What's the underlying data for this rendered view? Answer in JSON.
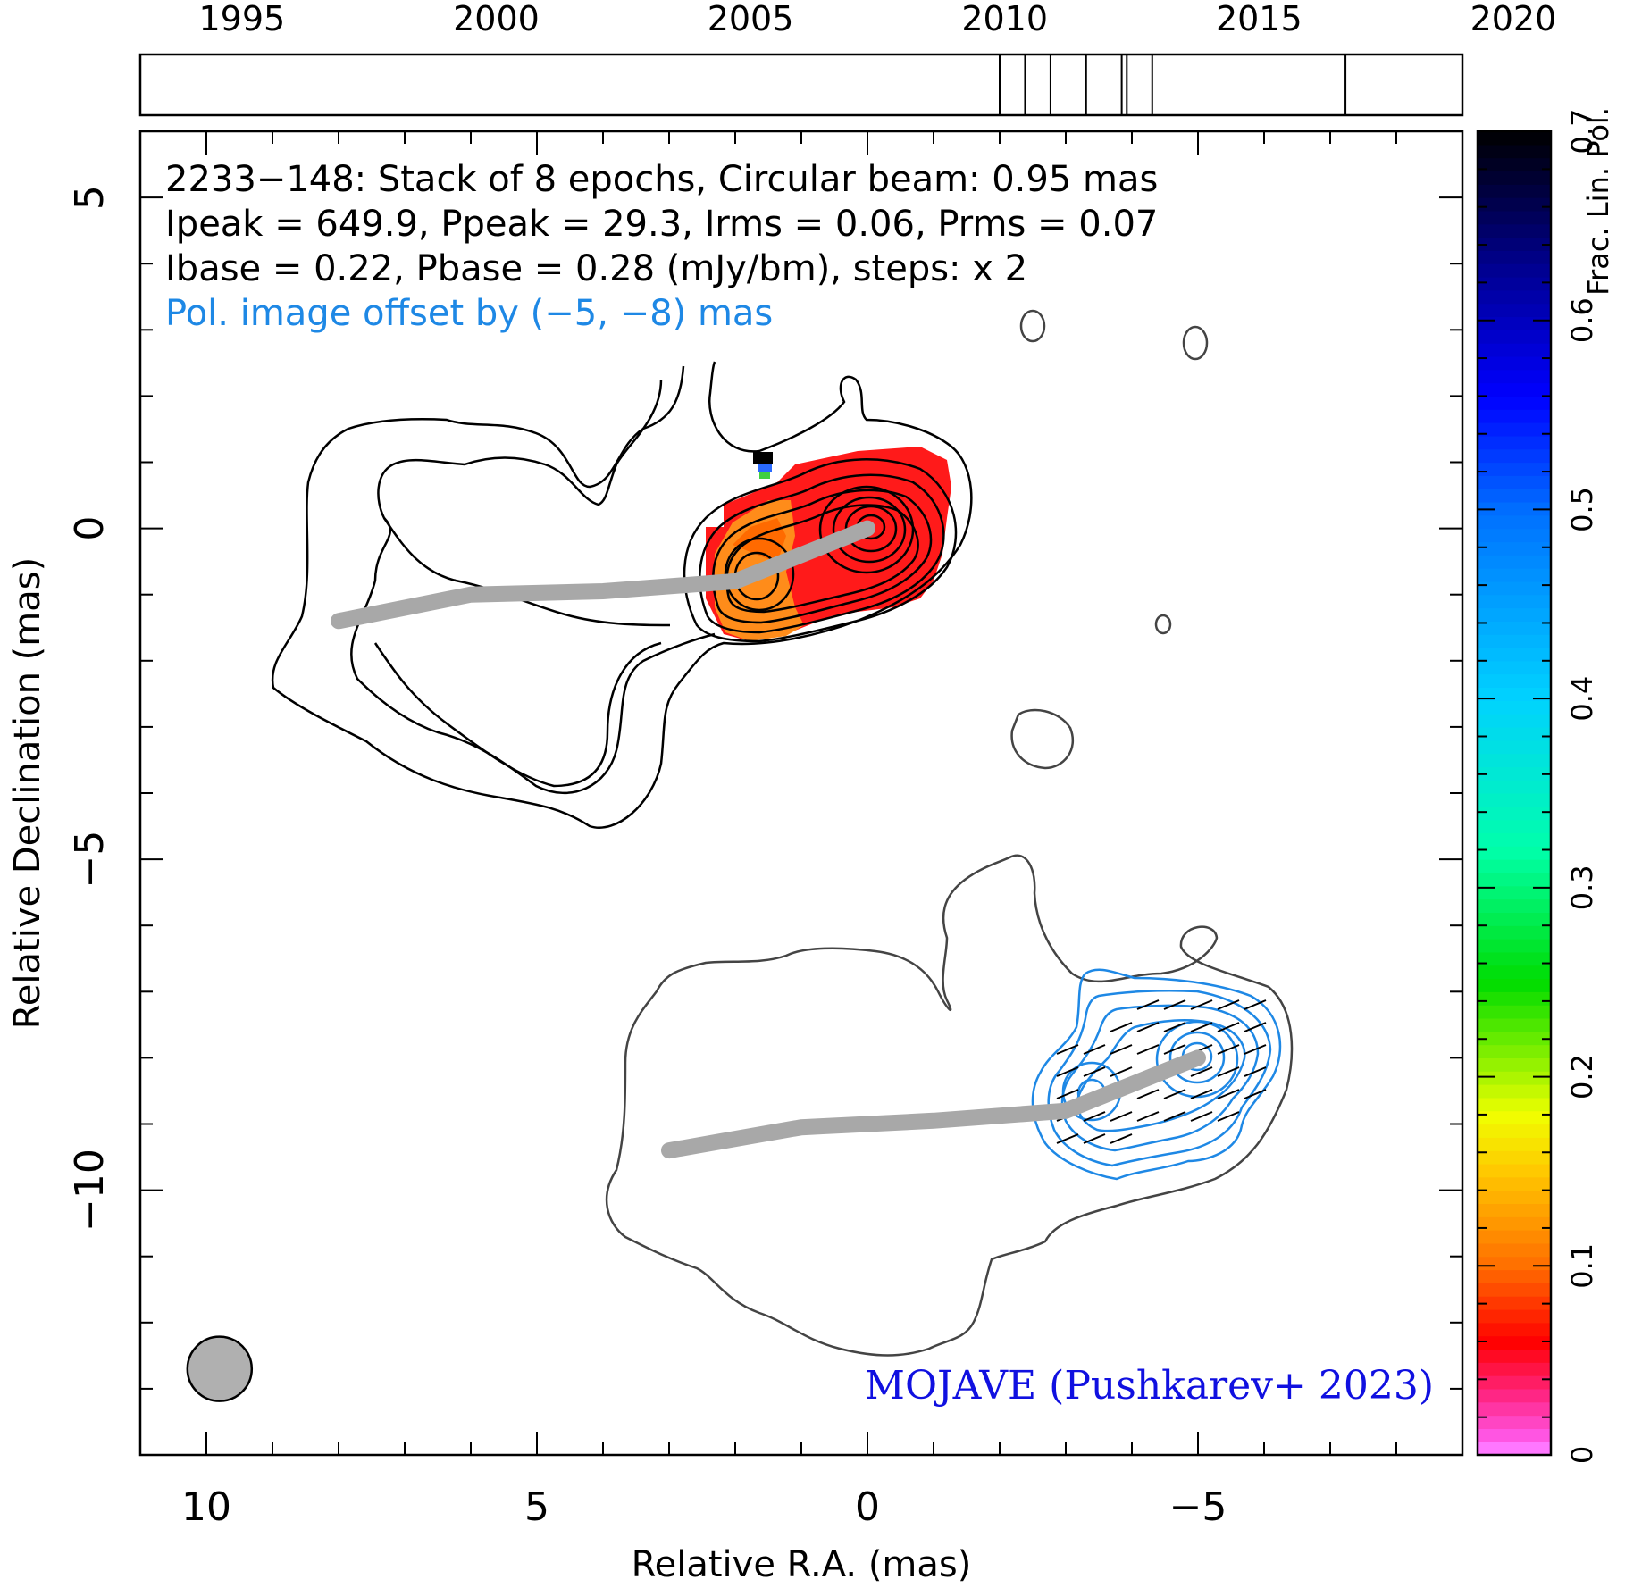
{
  "chart_data": {
    "type": "contour",
    "xlabel": "Relative R.A. (mas)",
    "ylabel": "Relative Declination (mas)",
    "xlim": [
      11,
      -9
    ],
    "ylim": [
      -14,
      6
    ],
    "x_ticks": [
      10,
      5,
      0,
      -5
    ],
    "y_ticks": [
      5,
      0,
      -5,
      -10
    ],
    "epoch_axis": {
      "range": [
        1993,
        2019
      ],
      "tick_labels": [
        "1995",
        "2000",
        "2005",
        "2010",
        "2015",
        "2020"
      ],
      "tick_values": [
        1995,
        2000,
        2005,
        2010,
        2015,
        2020
      ],
      "epochs": [
        2009.9,
        2010.4,
        2010.9,
        2011.6,
        2012.3,
        2012.4,
        2012.9,
        2016.7
      ]
    },
    "annotations": [
      "2233−148: Stack of 8 epochs, Circular beam: 0.95 mas",
      "Ipeak = 649.9, Ppeak = 29.3, Irms = 0.06, Prms = 0.07",
      "Ibase = 0.22, Pbase = 0.28 (mJy/bm), steps: x 2"
    ],
    "offset_note": "Pol. image offset by (−5, −8) mas",
    "credit": "MOJAVE (Pushkarev+ 2023)",
    "colorbar": {
      "label": "Frac. Lin. Pol.",
      "range": [
        0,
        0.7
      ],
      "tick_labels": [
        "0",
        "0.1",
        "0.2",
        "0.3",
        "0.4",
        "0.5",
        "0.6",
        "0.7"
      ],
      "tick_values": [
        0,
        0.1,
        0.2,
        0.3,
        0.4,
        0.5,
        0.6,
        0.7
      ]
    },
    "beam": {
      "x": 9.8,
      "y": -12.7,
      "diameter_mas": 0.95
    },
    "ridge_line": [
      [
        8,
        -1.4
      ],
      [
        6,
        -1.0
      ],
      [
        4,
        -0.95
      ],
      [
        2,
        -0.8
      ],
      [
        0,
        0
      ]
    ],
    "pol_ridge_line": [
      [
        3,
        -9.4
      ],
      [
        1,
        -9.05
      ],
      [
        -1,
        -8.95
      ],
      [
        -3,
        -8.8
      ],
      [
        -5,
        -8
      ]
    ]
  }
}
